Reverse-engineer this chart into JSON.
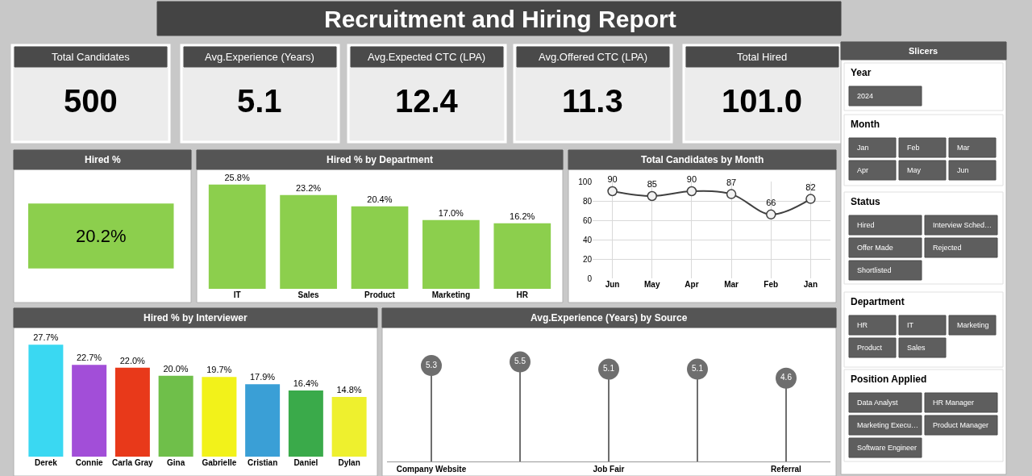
{
  "chart_data": [
    {
      "type": "other",
      "title": "Recruitment and Hiring Report",
      "categories": [
        "Total Candidates",
        "Avg.Experience (Years)",
        "Avg.Expected CTC (LPA)",
        "Avg.Offered CTC (LPA)",
        "Total Hired"
      ],
      "values": [
        500,
        5.1,
        12.4,
        11.3,
        101.0
      ],
      "value_labels": [
        "500",
        "5.1",
        "12.4",
        "11.3",
        "101.0"
      ]
    },
    {
      "type": "bar",
      "title": "Hired %",
      "orientation": "horizontal",
      "categories": [
        null
      ],
      "values": [
        20.2
      ],
      "value_labels": [
        "20.2%"
      ],
      "color": "#8ccf4d",
      "tick_labels": false
    },
    {
      "type": "bar",
      "title": "Hired % by Department",
      "categories": [
        "IT",
        "Sales",
        "Product",
        "Marketing",
        "HR"
      ],
      "values": [
        25.8,
        23.2,
        20.4,
        17.0,
        16.2
      ],
      "value_labels": [
        "25.8%",
        "23.2%",
        "20.4%",
        "17.0%",
        "16.2%"
      ],
      "color": "#8ccf4d",
      "tick_labels": "x"
    },
    {
      "type": "line",
      "title": "Total Candidates by Month",
      "categories": [
        "Jun",
        "May",
        "Apr",
        "Mar",
        "Feb",
        "Jan"
      ],
      "values": [
        90,
        85,
        90,
        87,
        66,
        82
      ],
      "data_labels": true,
      "color": "#404040",
      "marker": "circle",
      "ylim": [
        0,
        100
      ],
      "yticks": [
        0,
        20,
        40,
        60,
        80,
        100
      ],
      "grid": true
    },
    {
      "type": "bar",
      "title": "Hired % by Interviewer",
      "categories": [
        "Derek",
        "Connie",
        "Carla Gray",
        "Gina",
        "Gabrielle",
        "Cristian",
        "Daniel",
        "Dylan"
      ],
      "values": [
        27.7,
        22.7,
        22.0,
        20.0,
        19.7,
        17.9,
        16.4,
        14.8
      ],
      "value_labels": [
        "27.7%",
        "22.7%",
        "22.0%",
        "20.0%",
        "19.7%",
        "17.9%",
        "16.4%",
        "14.8%"
      ],
      "colors": [
        "#3ad8f2",
        "#a24ed8",
        "#e8391a",
        "#6fbf4a",
        "#f2f21a",
        "#3a9fd6",
        "#3aaa4a",
        "#eef02e"
      ],
      "tick_labels": "x"
    },
    {
      "type": "lollipop",
      "title": "Avg.Experience (Years) by Source",
      "categories": [
        "Company Website",
        null,
        "Job Fair",
        null,
        "Referral"
      ],
      "values": [
        5.3,
        5.5,
        5.1,
        5.1,
        4.6
      ],
      "data_labels": true,
      "color": "#6e6e6e",
      "marker": "circle",
      "tick_labels": "x"
    },
    {
      "type": "other",
      "title": "Slicers"
    },
    {
      "type": "other",
      "title": "Year",
      "categories": [
        "2024"
      ]
    },
    {
      "type": "other",
      "title": "Month",
      "categories": [
        "Jan",
        "Feb",
        "Mar",
        "Apr",
        "May",
        "Jun"
      ]
    },
    {
      "type": "other",
      "title": "Status",
      "categories": [
        "Hired",
        "Interview Sched…",
        "Offer Made",
        "Rejected",
        "Shortlisted"
      ]
    },
    {
      "type": "other",
      "title": "Department",
      "categories": [
        "HR",
        "IT",
        "Marketing",
        "Product",
        "Sales"
      ]
    },
    {
      "type": "other",
      "title": "Position Applied",
      "categories": [
        "Data Analyst",
        "HR Manager",
        "Marketing Execu…",
        "Product Manager",
        "Software Engineer"
      ]
    }
  ]
}
